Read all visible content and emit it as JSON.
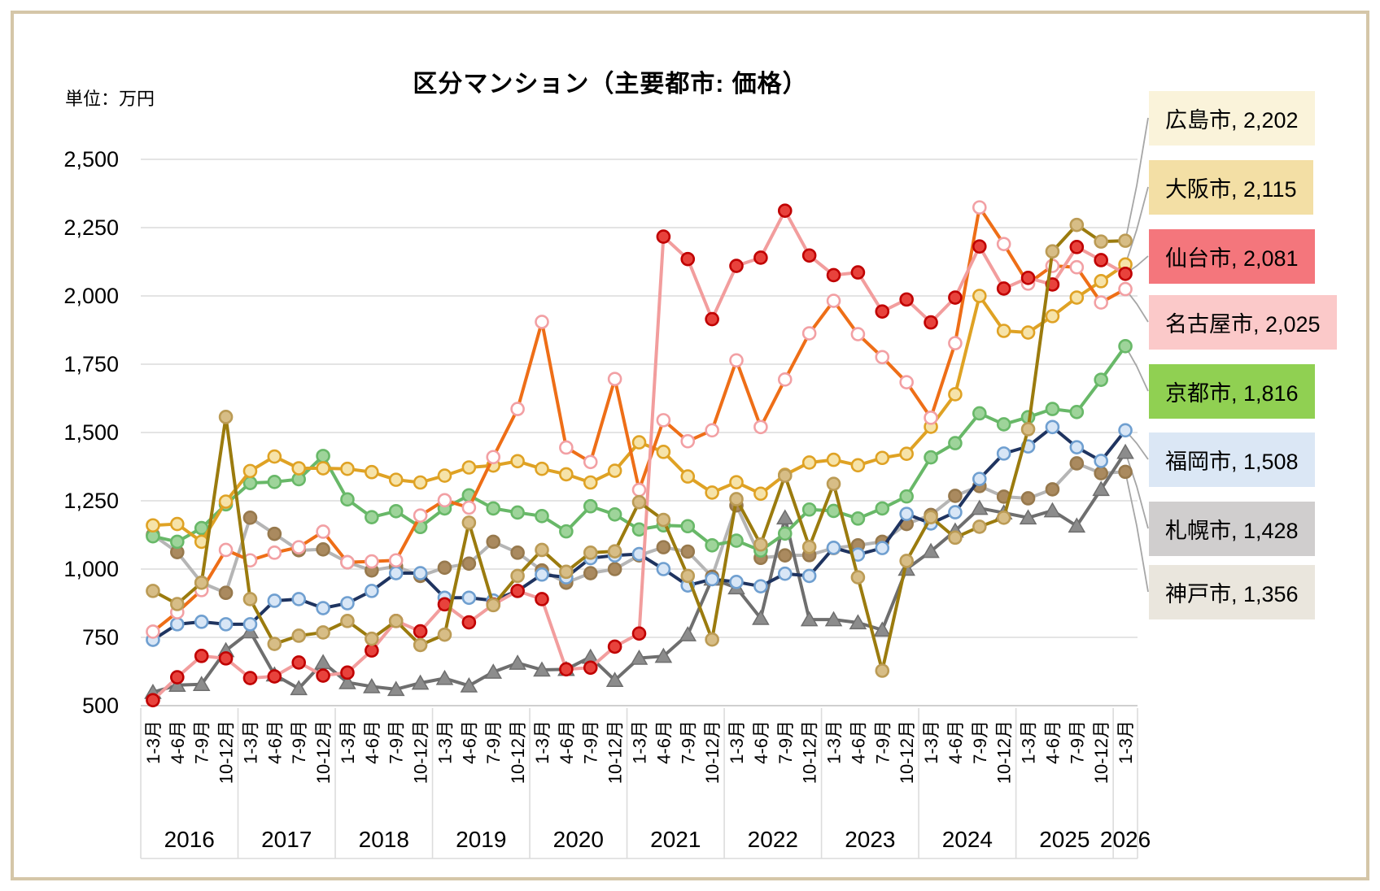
{
  "header": {
    "title": "区分マンション（主要都市: 価格）",
    "unit_label": "単位：万円"
  },
  "chart_data": {
    "type": "line",
    "title": "区分マンション（主要都市: 価格）",
    "ylabel": "単位：万円",
    "xlabel": "",
    "ylim": [
      500,
      2500
    ],
    "ytick_step": 250,
    "ytick_labels": [
      "500",
      "750",
      "1,000",
      "1,250",
      "1,500",
      "1,750",
      "2,000",
      "2,250",
      "2,500"
    ],
    "grid": true,
    "legend_position": "right",
    "quarter_labels": [
      "1-3月",
      "4-6月",
      "7-9月",
      "10-12月"
    ],
    "years": [
      {
        "label": "2016",
        "quarters": 4
      },
      {
        "label": "2017",
        "quarters": 4
      },
      {
        "label": "2018",
        "quarters": 4
      },
      {
        "label": "2019",
        "quarters": 4
      },
      {
        "label": "2020",
        "quarters": 4
      },
      {
        "label": "2021",
        "quarters": 4
      },
      {
        "label": "2022",
        "quarters": 4
      },
      {
        "label": "2023",
        "quarters": 4
      },
      {
        "label": "2024",
        "quarters": 4
      },
      {
        "label": "2025",
        "quarters": 4
      },
      {
        "label": "2026",
        "quarters": 1
      }
    ],
    "leader_line_color": "#a6a6a6",
    "gridline_color": "#dcdcdc",
    "axisline_color": "#bfbfbf",
    "series": [
      {
        "key": "kobe",
        "name": "神戸市",
        "final_value": "1,356",
        "legend_label": "神戸市, 1,356",
        "line_color": "#b5b5b5",
        "marker": "circle",
        "marker_fill": "#aa8a5f",
        "marker_stroke": "#97794d",
        "legend_bg": "#eae6dd",
        "values": [
          1125,
          1062,
          950,
          913,
          1188,
          1129,
          1069,
          1072,
          1025,
          995,
          1010,
          975,
          1005,
          1020,
          1100,
          1060,
          995,
          950,
          985,
          1000,
          1050,
          1080,
          1064,
          972,
          1233,
          1041,
          1050,
          1051,
          1077,
          1087,
          1100,
          1165,
          1198,
          1268,
          1304,
          1265,
          1259,
          1292,
          1387,
          1351,
          1356
        ]
      },
      {
        "key": "sapporo",
        "name": "札幌市",
        "final_value": "1,428",
        "legend_label": "札幌市, 1,428",
        "line_color": "#6e6e6e",
        "marker": "triangle",
        "marker_fill": "#8c8c8c",
        "marker_stroke": "#6e6e6e",
        "legend_bg": "#d0cece",
        "values": [
          549,
          575,
          578,
          702,
          771,
          613,
          563,
          658,
          585,
          570,
          560,
          583,
          600,
          573,
          623,
          656,
          631,
          633,
          678,
          593,
          674,
          681,
          760,
          964,
          932,
          820,
          1188,
          815,
          815,
          804,
          777,
          1000,
          1065,
          1140,
          1223,
          1206,
          1188,
          1214,
          1158,
          1292,
          1428
        ]
      },
      {
        "key": "fukuoka",
        "name": "福岡市",
        "final_value": "1,508",
        "legend_label": "福岡市, 1,508",
        "line_color": "#1f3460",
        "marker": "circle",
        "marker_fill": "#d8e6f6",
        "marker_stroke": "#6f9fd0",
        "legend_bg": "#dbe7f5",
        "values": [
          741,
          798,
          807,
          798,
          798,
          884,
          890,
          857,
          875,
          920,
          985,
          985,
          895,
          895,
          885,
          920,
          980,
          970,
          1040,
          1050,
          1055,
          1000,
          940,
          963,
          953,
          937,
          983,
          975,
          1078,
          1053,
          1077,
          1202,
          1167,
          1208,
          1330,
          1423,
          1449,
          1520,
          1446,
          1396,
          1508
        ]
      },
      {
        "key": "kyoto",
        "name": "京都市",
        "final_value": "1,816",
        "legend_label": "京都市, 1,816",
        "line_color": "#68b868",
        "marker": "circle",
        "marker_fill": "#9ed49a",
        "marker_stroke": "#68b868",
        "legend_bg": "#90d052",
        "values": [
          1120,
          1100,
          1150,
          1237,
          1315,
          1319,
          1329,
          1414,
          1255,
          1190,
          1212,
          1154,
          1222,
          1270,
          1222,
          1207,
          1194,
          1138,
          1230,
          1200,
          1145,
          1160,
          1157,
          1087,
          1104,
          1068,
          1130,
          1218,
          1213,
          1185,
          1222,
          1266,
          1409,
          1461,
          1570,
          1530,
          1556,
          1586,
          1575,
          1693,
          1816
        ]
      },
      {
        "key": "osaka",
        "name": "大阪市",
        "final_value": "2,115",
        "legend_label": "大阪市, 2,115",
        "line_color": "#dfa224",
        "marker": "circle",
        "marker_fill": "#f6e3a9",
        "marker_stroke": "#dfa224",
        "legend_bg": "#f3dfa5",
        "values": [
          1160,
          1165,
          1100,
          1247,
          1359,
          1412,
          1369,
          1369,
          1367,
          1355,
          1327,
          1317,
          1342,
          1372,
          1379,
          1395,
          1367,
          1347,
          1317,
          1360,
          1464,
          1429,
          1339,
          1280,
          1318,
          1276,
          1345,
          1390,
          1400,
          1380,
          1407,
          1422,
          1521,
          1640,
          2000,
          1872,
          1866,
          1926,
          1994,
          2054,
          2115
        ]
      },
      {
        "key": "nagoya",
        "name": "名古屋市",
        "final_value": "2,025",
        "legend_label": "名古屋市, 2,025",
        "line_color": "#ee6e17",
        "marker": "circle",
        "marker_fill": "#ffffff",
        "marker_stroke": "#f2a0a4",
        "legend_bg": "#fbc9c9",
        "values": [
          771,
          842,
          923,
          1070,
          1032,
          1060,
          1080,
          1137,
          1025,
          1028,
          1032,
          1196,
          1252,
          1225,
          1410,
          1586,
          1905,
          1445,
          1392,
          1696,
          1290,
          1545,
          1468,
          1508,
          1764,
          1520,
          1694,
          1863,
          1982,
          1860,
          1776,
          1684,
          1554,
          1827,
          2324,
          2190,
          2045,
          2110,
          2105,
          1976,
          2025
        ]
      },
      {
        "key": "sendai",
        "name": "仙台市",
        "final_value": "2,081",
        "legend_label": "仙台市, 2,081",
        "line_color": "#f29d9d",
        "marker": "circle",
        "marker_fill": "#e8423c",
        "marker_stroke": "#c00000",
        "legend_bg": "#f4767c",
        "values": [
          520,
          604,
          682,
          673,
          601,
          607,
          658,
          610,
          621,
          702,
          810,
          772,
          871,
          805,
          870,
          920,
          890,
          633,
          639,
          716,
          764,
          2217,
          2135,
          1915,
          2110,
          2140,
          2312,
          2148,
          2076,
          2086,
          1943,
          1987,
          1903,
          1994,
          2181,
          2027,
          2066,
          2042,
          2179,
          2131,
          2081
        ]
      },
      {
        "key": "hiroshima",
        "name": "広島市",
        "final_value": "2,202",
        "legend_label": "広島市, 2,202",
        "line_color": "#9b7b0e",
        "marker": "circle",
        "marker_fill": "#d7bd86",
        "marker_stroke": "#bb9b55",
        "legend_bg": "#faf3da",
        "values": [
          920,
          872,
          950,
          1557,
          890,
          726,
          756,
          768,
          810,
          745,
          810,
          722,
          760,
          1170,
          868,
          975,
          1070,
          990,
          1060,
          1065,
          1245,
          1180,
          975,
          742,
          1256,
          1090,
          1342,
          1081,
          1312,
          970,
          628,
          1030,
          1190,
          1115,
          1155,
          1188,
          1512,
          2163,
          2260,
          2199,
          2202
        ]
      }
    ]
  }
}
